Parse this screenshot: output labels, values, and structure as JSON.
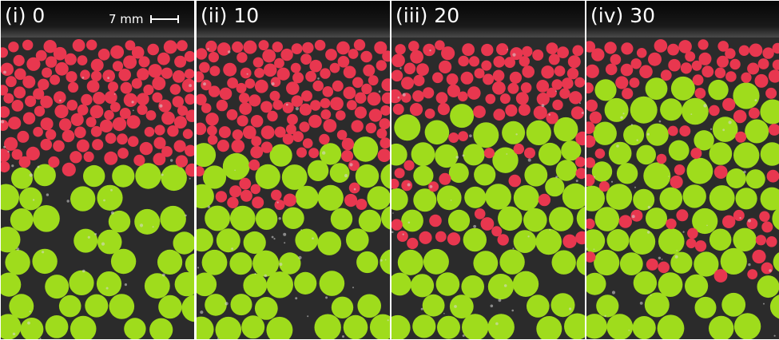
{
  "panels": [
    {
      "label": "(i) 0",
      "mix_depth": 0.0
    },
    {
      "label": "(ii) 10",
      "mix_depth": 0.18
    },
    {
      "label": "(iii) 20",
      "mix_depth": 0.42
    },
    {
      "label": "(iv) 30",
      "mix_depth": 0.62
    }
  ],
  "scale_bar": {
    "label": "7 mm"
  },
  "colors": {
    "small_particle": "#e8374f",
    "large_particle": "#9fdc1c",
    "background": "#2b2b2b",
    "lid": "#0c0c0c",
    "divider": "#ffffff"
  }
}
